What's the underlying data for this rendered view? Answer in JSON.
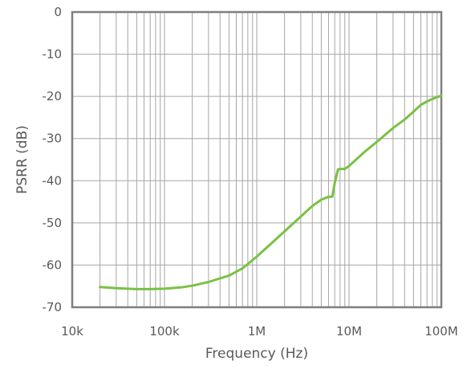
{
  "chart_data": {
    "type": "line",
    "title": "",
    "xlabel": "Frequency (Hz)",
    "ylabel": "PSRR (dB)",
    "x_scale": "log",
    "xlim": [
      10000,
      100000000
    ],
    "ylim": [
      -70,
      0
    ],
    "x_ticks": [
      {
        "value": 10000,
        "label": "10k"
      },
      {
        "value": 100000,
        "label": "100k"
      },
      {
        "value": 1000000,
        "label": "1M"
      },
      {
        "value": 10000000,
        "label": "10M"
      },
      {
        "value": 100000000,
        "label": "100M"
      }
    ],
    "y_ticks": [
      {
        "value": 0,
        "label": "0"
      },
      {
        "value": -10,
        "label": "-10"
      },
      {
        "value": -20,
        "label": "-20"
      },
      {
        "value": -30,
        "label": "-30"
      },
      {
        "value": -40,
        "label": "-40"
      },
      {
        "value": -50,
        "label": "-50"
      },
      {
        "value": -60,
        "label": "-60"
      },
      {
        "value": -70,
        "label": "-70"
      }
    ],
    "grid": true,
    "legend": "none",
    "series": [
      {
        "color": "#7ac143",
        "x": [
          20000,
          30000,
          50000,
          70000,
          100000,
          150000,
          200000,
          300000,
          500000,
          700000,
          1000000,
          1500000,
          2000000,
          3000000,
          4000000,
          5000000,
          6000000,
          6600000,
          7000000,
          7600000,
          8000000,
          9000000,
          10000000,
          15000000,
          20000000,
          30000000,
          40000000,
          50000000,
          60000000,
          70000000,
          80000000,
          100000000
        ],
        "y": [
          -65.2,
          -65.5,
          -65.7,
          -65.7,
          -65.6,
          -65.3,
          -64.9,
          -64.0,
          -62.5,
          -60.8,
          -58.0,
          -54.5,
          -52.0,
          -48.5,
          -46.0,
          -44.5,
          -43.8,
          -43.8,
          -40.5,
          -37.3,
          -37.2,
          -37.2,
          -36.5,
          -33.0,
          -30.8,
          -27.5,
          -25.5,
          -23.6,
          -22.0,
          -21.2,
          -20.6,
          -19.8
        ]
      }
    ]
  },
  "colors": {
    "grid": "#a6a6a6",
    "frame": "#7f7f7f",
    "line": "#7ac143"
  }
}
